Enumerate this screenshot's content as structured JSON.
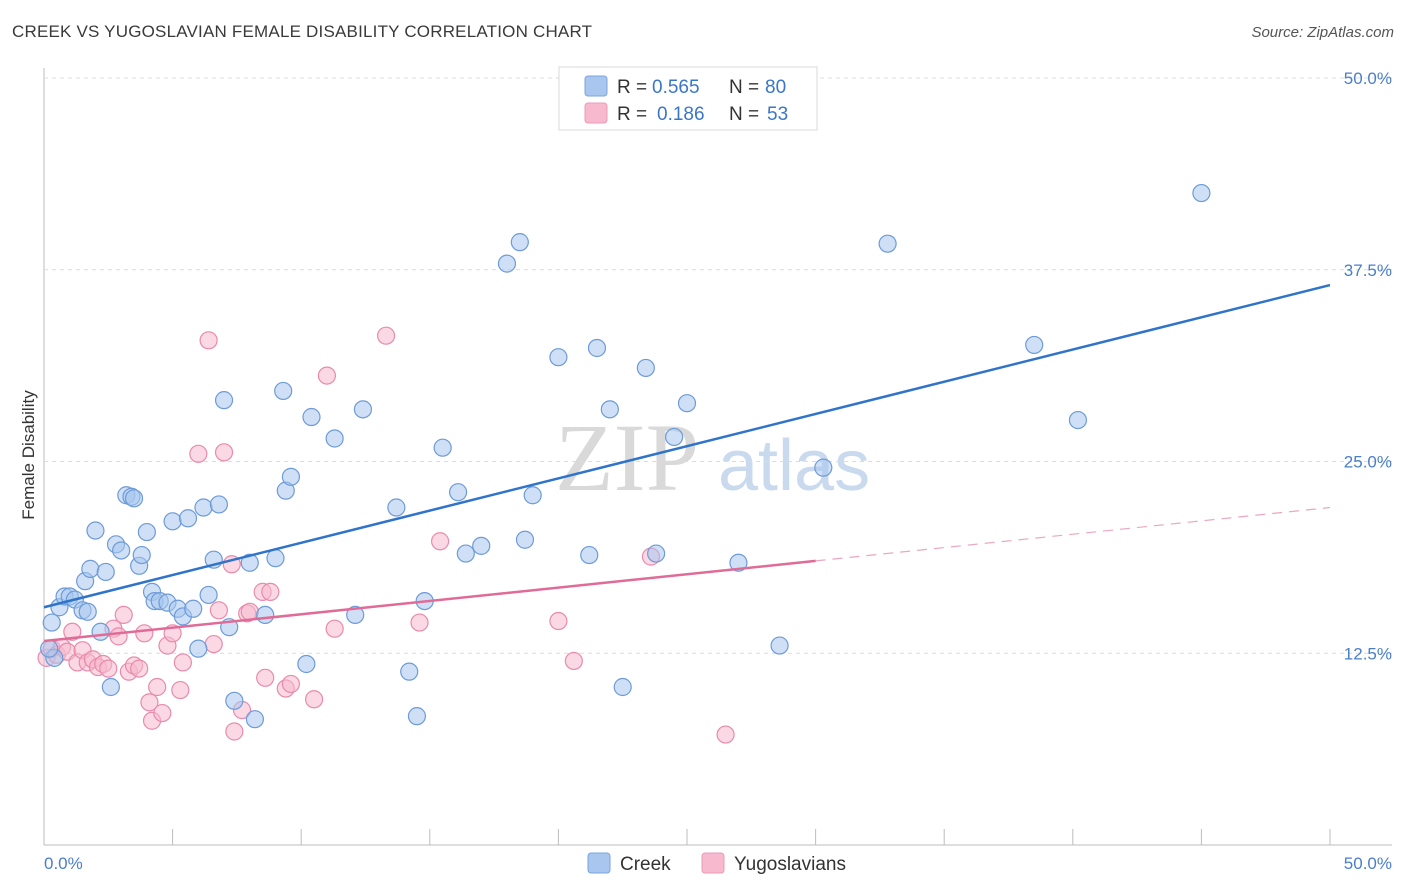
{
  "header": {
    "title": "CREEK VS YUGOSLAVIAN FEMALE DISABILITY CORRELATION CHART",
    "source": "Source: ZipAtlas.com"
  },
  "watermark": {
    "part1": "ZIP",
    "part2": "atlas"
  },
  "legend": {
    "rows": [
      {
        "r_label": "R =",
        "r_value": "0.565",
        "n_label": "N =",
        "n_value": "80",
        "color": "#a8c6ee"
      },
      {
        "r_label": "R =",
        "r_value": "0.186",
        "n_label": "N =",
        "n_value": "53",
        "color": "#f6b9cd"
      }
    ]
  },
  "bottom_legend": [
    {
      "label": "Creek",
      "color": "#a8c6ee"
    },
    {
      "label": "Yugoslavians",
      "color": "#f6b9cd"
    }
  ],
  "colors": {
    "creek_fill": "#a8c6ee",
    "creek_stroke": "#6d9bd8",
    "creek_line": "#2f74c9",
    "yugo_fill": "#f6b9cd",
    "yugo_stroke": "#e98aac",
    "yugo_line": "#e06b97",
    "grid": "#dcdcdc",
    "tick_label": "#4a7fc7"
  },
  "chart_data": {
    "type": "scatter",
    "title": "CREEK VS YUGOSLAVIAN FEMALE DISABILITY CORRELATION CHART",
    "xlabel": "",
    "ylabel": "Female Disability",
    "xlim": [
      0,
      50
    ],
    "ylim": [
      0,
      50
    ],
    "x_tick_labels": [
      "0.0%",
      "50.0%"
    ],
    "y_ticks": [
      12.5,
      25.0,
      37.5,
      50.0
    ],
    "y_tick_labels": [
      "12.5%",
      "25.0%",
      "37.5%",
      "50.0%"
    ],
    "grid": "horizontal dashed",
    "legend_position": "top-center",
    "series": [
      {
        "name": "Creek",
        "r": 0.565,
        "n": 80,
        "trend": {
          "x0": 0,
          "y0": 15.5,
          "x1": 50,
          "y1": 36.5,
          "dashed_from": null
        },
        "points": [
          [
            0.3,
            14.5
          ],
          [
            0.4,
            12.2
          ],
          [
            0.6,
            15.5
          ],
          [
            0.8,
            16.2
          ],
          [
            1.0,
            16.2
          ],
          [
            1.2,
            16.0
          ],
          [
            1.5,
            15.3
          ],
          [
            1.6,
            17.2
          ],
          [
            1.7,
            15.2
          ],
          [
            1.8,
            18.0
          ],
          [
            2.0,
            20.5
          ],
          [
            2.2,
            13.9
          ],
          [
            2.4,
            17.8
          ],
          [
            2.6,
            10.3
          ],
          [
            2.8,
            19.6
          ],
          [
            3.0,
            19.2
          ],
          [
            3.2,
            22.8
          ],
          [
            3.4,
            22.7
          ],
          [
            3.5,
            22.6
          ],
          [
            3.7,
            18.2
          ],
          [
            3.8,
            18.9
          ],
          [
            4.0,
            20.4
          ],
          [
            4.2,
            16.5
          ],
          [
            4.3,
            15.9
          ],
          [
            4.5,
            15.9
          ],
          [
            4.8,
            15.8
          ],
          [
            5.0,
            21.1
          ],
          [
            5.2,
            15.4
          ],
          [
            5.4,
            14.9
          ],
          [
            5.6,
            21.3
          ],
          [
            5.8,
            15.4
          ],
          [
            6.0,
            12.8
          ],
          [
            6.2,
            22.0
          ],
          [
            6.4,
            16.3
          ],
          [
            6.6,
            18.6
          ],
          [
            6.8,
            22.2
          ],
          [
            7.0,
            29.0
          ],
          [
            7.2,
            14.2
          ],
          [
            7.4,
            9.4
          ],
          [
            8.0,
            18.4
          ],
          [
            8.2,
            8.2
          ],
          [
            8.6,
            15.0
          ],
          [
            9.0,
            18.7
          ],
          [
            9.3,
            29.6
          ],
          [
            9.4,
            23.1
          ],
          [
            9.6,
            24.0
          ],
          [
            10.2,
            11.8
          ],
          [
            10.4,
            27.9
          ],
          [
            11.3,
            26.5
          ],
          [
            12.1,
            15.0
          ],
          [
            12.4,
            28.4
          ],
          [
            13.7,
            22.0
          ],
          [
            14.2,
            11.3
          ],
          [
            14.5,
            8.4
          ],
          [
            14.8,
            15.9
          ],
          [
            15.5,
            25.9
          ],
          [
            16.1,
            23.0
          ],
          [
            16.4,
            19.0
          ],
          [
            17.0,
            19.5
          ],
          [
            18.0,
            37.9
          ],
          [
            18.5,
            39.3
          ],
          [
            18.7,
            19.9
          ],
          [
            19.0,
            22.8
          ],
          [
            20.0,
            31.8
          ],
          [
            21.2,
            18.9
          ],
          [
            21.5,
            32.4
          ],
          [
            22.0,
            28.4
          ],
          [
            22.5,
            10.3
          ],
          [
            23.4,
            31.1
          ],
          [
            23.8,
            19.0
          ],
          [
            24.5,
            26.6
          ],
          [
            25.0,
            28.8
          ],
          [
            27.0,
            18.4
          ],
          [
            28.6,
            13.0
          ],
          [
            30.3,
            24.6
          ],
          [
            32.8,
            39.2
          ],
          [
            38.5,
            32.6
          ],
          [
            40.2,
            27.7
          ],
          [
            45.0,
            42.5
          ],
          [
            0.2,
            12.8
          ]
        ]
      },
      {
        "name": "Yugoslavians",
        "r": 0.186,
        "n": 53,
        "trend": {
          "x0": 0,
          "y0": 13.3,
          "x1": 50,
          "y1": 22.0,
          "dashed_from": 30
        },
        "points": [
          [
            0.1,
            12.2
          ],
          [
            0.3,
            12.8
          ],
          [
            0.5,
            12.4
          ],
          [
            0.7,
            12.9
          ],
          [
            0.9,
            12.6
          ],
          [
            1.1,
            13.9
          ],
          [
            1.3,
            11.9
          ],
          [
            1.5,
            12.7
          ],
          [
            1.7,
            11.9
          ],
          [
            1.9,
            12.1
          ],
          [
            2.1,
            11.6
          ],
          [
            2.3,
            11.8
          ],
          [
            2.5,
            11.5
          ],
          [
            2.7,
            14.1
          ],
          [
            2.9,
            13.6
          ],
          [
            3.1,
            15.0
          ],
          [
            3.3,
            11.3
          ],
          [
            3.5,
            11.7
          ],
          [
            3.7,
            11.5
          ],
          [
            3.9,
            13.8
          ],
          [
            4.1,
            9.3
          ],
          [
            4.2,
            8.1
          ],
          [
            4.4,
            10.3
          ],
          [
            4.6,
            8.6
          ],
          [
            4.8,
            13.0
          ],
          [
            5.0,
            13.8
          ],
          [
            5.3,
            10.1
          ],
          [
            5.4,
            11.9
          ],
          [
            6.0,
            25.5
          ],
          [
            6.4,
            32.9
          ],
          [
            6.6,
            13.1
          ],
          [
            6.8,
            15.3
          ],
          [
            7.0,
            25.6
          ],
          [
            7.3,
            18.3
          ],
          [
            7.4,
            7.4
          ],
          [
            7.7,
            8.8
          ],
          [
            7.9,
            15.1
          ],
          [
            8.0,
            15.2
          ],
          [
            8.5,
            16.5
          ],
          [
            8.6,
            10.9
          ],
          [
            8.8,
            16.5
          ],
          [
            9.4,
            10.2
          ],
          [
            9.6,
            10.5
          ],
          [
            10.5,
            9.5
          ],
          [
            11.0,
            30.6
          ],
          [
            11.3,
            14.1
          ],
          [
            13.3,
            33.2
          ],
          [
            14.6,
            14.5
          ],
          [
            15.4,
            19.8
          ],
          [
            20.0,
            14.6
          ],
          [
            20.6,
            12.0
          ],
          [
            23.6,
            18.8
          ],
          [
            26.5,
            7.2
          ]
        ]
      }
    ]
  }
}
